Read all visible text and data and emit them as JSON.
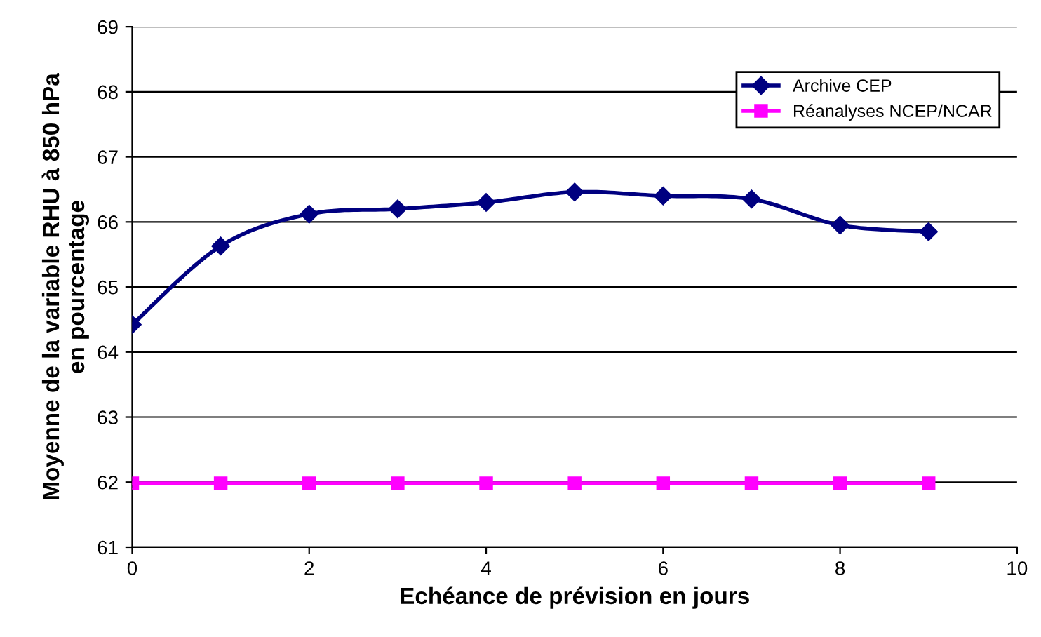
{
  "chart_data": {
    "type": "line",
    "xlabel": "Echéance de prévision en jours",
    "ylabel": "Moyenne de la variable RHU à 850 hPa\nen pourcentage",
    "x": [
      0,
      1,
      2,
      3,
      4,
      5,
      6,
      7,
      8,
      9
    ],
    "series": [
      {
        "name": "Archive CEP",
        "color": "#000080",
        "marker": "diamond",
        "values": [
          64.42,
          65.63,
          66.12,
          66.2,
          66.3,
          66.46,
          66.4,
          66.35,
          65.95,
          65.85
        ]
      },
      {
        "name": "Réanalyses NCEP/NCAR",
        "color": "#ff00ff",
        "marker": "square",
        "values": [
          61.98,
          61.98,
          61.98,
          61.98,
          61.98,
          61.98,
          61.98,
          61.98,
          61.98,
          61.98
        ]
      }
    ],
    "xlim": [
      0,
      10
    ],
    "xticks": [
      0,
      2,
      4,
      6,
      8,
      10
    ],
    "ylim": [
      61,
      69
    ],
    "yticks": [
      61,
      62,
      63,
      64,
      65,
      66,
      67,
      68,
      69
    ],
    "grid": "y",
    "legend": "top right"
  }
}
